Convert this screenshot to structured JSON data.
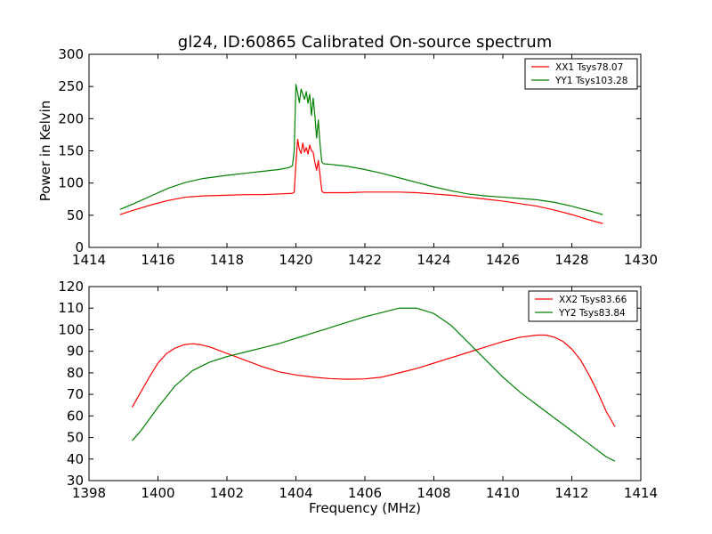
{
  "figure": {
    "title": "gl24, ID:60865 Calibrated On-source spectrum",
    "xlabel": "Frequency (MHz)"
  },
  "chart_data": [
    {
      "type": "line",
      "title": "gl24, ID:60865 Calibrated On-source spectrum",
      "xlabel": "",
      "ylabel": "Power in Kelvin",
      "xlim": [
        1414,
        1430
      ],
      "ylim": [
        0,
        300
      ],
      "xticks": [
        1414,
        1416,
        1418,
        1420,
        1422,
        1424,
        1426,
        1428,
        1430
      ],
      "yticks": [
        0,
        50,
        100,
        150,
        200,
        250,
        300
      ],
      "grid": false,
      "legend_position": "top-right",
      "series": [
        {
          "name": "XX1 Tsys78.07",
          "color": "#ff0000",
          "x": [
            1414.9,
            1415.3,
            1415.8,
            1416.3,
            1416.8,
            1417.3,
            1418.0,
            1418.5,
            1419.0,
            1419.5,
            1419.9,
            1419.95,
            1420.0,
            1420.05,
            1420.1,
            1420.15,
            1420.2,
            1420.25,
            1420.3,
            1420.35,
            1420.4,
            1420.45,
            1420.5,
            1420.55,
            1420.6,
            1420.65,
            1420.7,
            1420.75,
            1420.8,
            1421.0,
            1421.5,
            1422.0,
            1422.5,
            1423.0,
            1423.5,
            1424.0,
            1424.5,
            1425.0,
            1425.5,
            1426.0,
            1426.5,
            1427.0,
            1427.5,
            1428.0,
            1428.5,
            1428.9
          ],
          "y": [
            51,
            58,
            66,
            73,
            78,
            80,
            81,
            82,
            82,
            83,
            84,
            86,
            130,
            168,
            152,
            146,
            162,
            148,
            155,
            145,
            159,
            150,
            148,
            132,
            120,
            135,
            112,
            88,
            85,
            85,
            85,
            86,
            86,
            86,
            85,
            83,
            81,
            78,
            75,
            72,
            68,
            64,
            58,
            51,
            43,
            37
          ]
        },
        {
          "name": "YY1 Tsys103.28",
          "color": "#008000",
          "x": [
            1414.9,
            1415.3,
            1415.8,
            1416.3,
            1416.8,
            1417.3,
            1418.0,
            1418.5,
            1419.0,
            1419.5,
            1419.8,
            1419.9,
            1419.95,
            1420.0,
            1420.05,
            1420.1,
            1420.15,
            1420.2,
            1420.25,
            1420.3,
            1420.35,
            1420.4,
            1420.45,
            1420.5,
            1420.55,
            1420.6,
            1420.65,
            1420.7,
            1420.75,
            1420.8,
            1421.0,
            1421.5,
            1422.0,
            1422.5,
            1423.0,
            1423.5,
            1424.0,
            1424.5,
            1425.0,
            1425.5,
            1426.0,
            1426.5,
            1427.0,
            1427.5,
            1428.0,
            1428.5,
            1428.9
          ],
          "y": [
            59,
            68,
            80,
            92,
            101,
            107,
            112,
            115,
            118,
            121,
            124,
            127,
            150,
            253,
            240,
            225,
            246,
            238,
            230,
            242,
            224,
            238,
            205,
            232,
            205,
            170,
            198,
            160,
            133,
            130,
            129,
            126,
            121,
            115,
            108,
            101,
            94,
            88,
            83,
            80,
            78,
            76,
            74,
            70,
            64,
            57,
            51
          ]
        }
      ]
    },
    {
      "type": "line",
      "title": "",
      "xlabel": "Frequency (MHz)",
      "ylabel": "",
      "xlim": [
        1398,
        1414
      ],
      "ylim": [
        30,
        120
      ],
      "xticks": [
        1398,
        1400,
        1402,
        1404,
        1406,
        1408,
        1410,
        1412,
        1414
      ],
      "yticks": [
        30,
        40,
        50,
        60,
        70,
        80,
        90,
        100,
        110,
        120
      ],
      "grid": false,
      "legend_position": "top-right",
      "series": [
        {
          "name": "XX2 Tsys83.66",
          "color": "#ff0000",
          "x": [
            1399.25,
            1399.5,
            1399.75,
            1400.0,
            1400.25,
            1400.5,
            1400.75,
            1401.0,
            1401.25,
            1401.5,
            1401.75,
            1402.0,
            1402.5,
            1403.0,
            1403.5,
            1404.0,
            1404.5,
            1405.0,
            1405.5,
            1406.0,
            1406.5,
            1407.0,
            1407.5,
            1408.0,
            1408.5,
            1409.0,
            1409.5,
            1410.0,
            1410.5,
            1411.0,
            1411.25,
            1411.5,
            1411.75,
            1412.0,
            1412.25,
            1412.5,
            1412.75,
            1413.0,
            1413.25
          ],
          "y": [
            64,
            71,
            78,
            84.5,
            89,
            91.5,
            93,
            93.5,
            93,
            92,
            90.5,
            89,
            86,
            83,
            80.5,
            79,
            78,
            77.3,
            77,
            77.2,
            78,
            80,
            82,
            84.5,
            87,
            89.5,
            92,
            94.5,
            96.5,
            97.5,
            97.5,
            96.5,
            94.5,
            91,
            86,
            79,
            71,
            62,
            55
          ]
        },
        {
          "name": "YY2 Tsys83.84",
          "color": "#008000",
          "x": [
            1399.25,
            1399.5,
            1400.0,
            1400.5,
            1401.0,
            1401.5,
            1402.0,
            1402.5,
            1403.0,
            1403.5,
            1404.0,
            1404.5,
            1405.0,
            1405.5,
            1406.0,
            1406.5,
            1407.0,
            1407.5,
            1408.0,
            1408.5,
            1409.0,
            1409.5,
            1410.0,
            1410.5,
            1411.0,
            1411.5,
            1412.0,
            1412.5,
            1413.0,
            1413.25
          ],
          "y": [
            48.5,
            53,
            64,
            74,
            81,
            85,
            87.5,
            89.5,
            91.5,
            93.5,
            96,
            98.5,
            101,
            103.5,
            106,
            108,
            110,
            110,
            107.5,
            102,
            94,
            86,
            78,
            71,
            65,
            59,
            53,
            47,
            41,
            39
          ]
        }
      ]
    }
  ]
}
